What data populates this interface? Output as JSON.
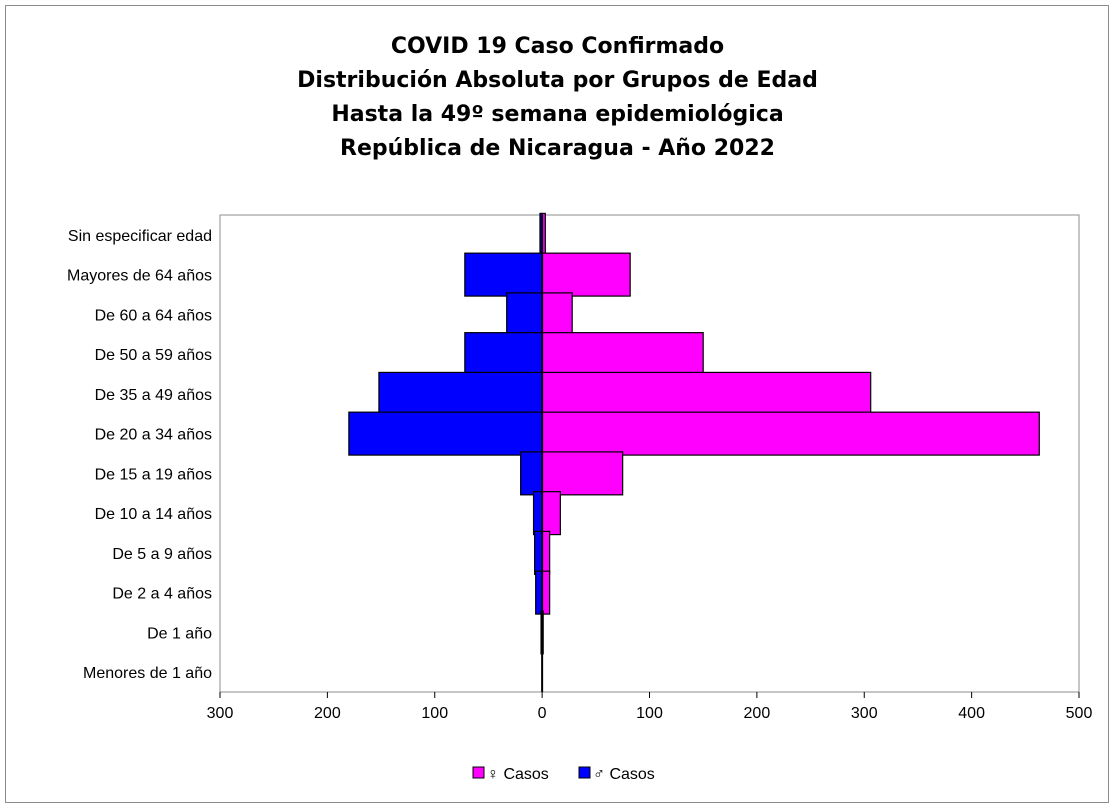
{
  "chart_data": {
    "type": "bar",
    "orientation": "horizontal",
    "title": "COVID 19 Caso Confirmado",
    "subtitle": [
      "Distribución Absoluta por Grupos de Edad",
      "Hasta la 49º semana epidemiológica",
      "República de Nicaragua - Año 2022"
    ],
    "categories": [
      "Sin especificar edad",
      "Mayores de 64 años",
      "De 60 a 64 años",
      "De 50 a 59 años",
      "De 35 a 49 años",
      "De 20 a 34 años",
      "De 15 a 19 años",
      "De 10 a 14 años",
      "De 5 a 9 años",
      "De 2 a 4 años",
      "De 1 año",
      "Menores de 1 año"
    ],
    "series": [
      {
        "name": "♀ Casos",
        "color": "#ff00ff",
        "values": [
          3,
          82,
          28,
          150,
          306,
          463,
          75,
          17,
          7,
          7,
          1,
          0
        ]
      },
      {
        "name": "♂ Casos",
        "color": "#0000ff",
        "values": [
          -2,
          -72,
          -33,
          -72,
          -152,
          -180,
          -20,
          -8,
          -7,
          -6,
          -1,
          0
        ]
      }
    ],
    "xlim": [
      -300,
      500
    ],
    "xticks": [
      {
        "value": -300,
        "label": "300"
      },
      {
        "value": -200,
        "label": "200"
      },
      {
        "value": -100,
        "label": "100"
      },
      {
        "value": 0,
        "label": "0"
      },
      {
        "value": 100,
        "label": "100"
      },
      {
        "value": 200,
        "label": "200"
      },
      {
        "value": 300,
        "label": "300"
      },
      {
        "value": 400,
        "label": "400"
      },
      {
        "value": 500,
        "label": "500"
      }
    ],
    "grid": false,
    "legend": "bottom"
  }
}
